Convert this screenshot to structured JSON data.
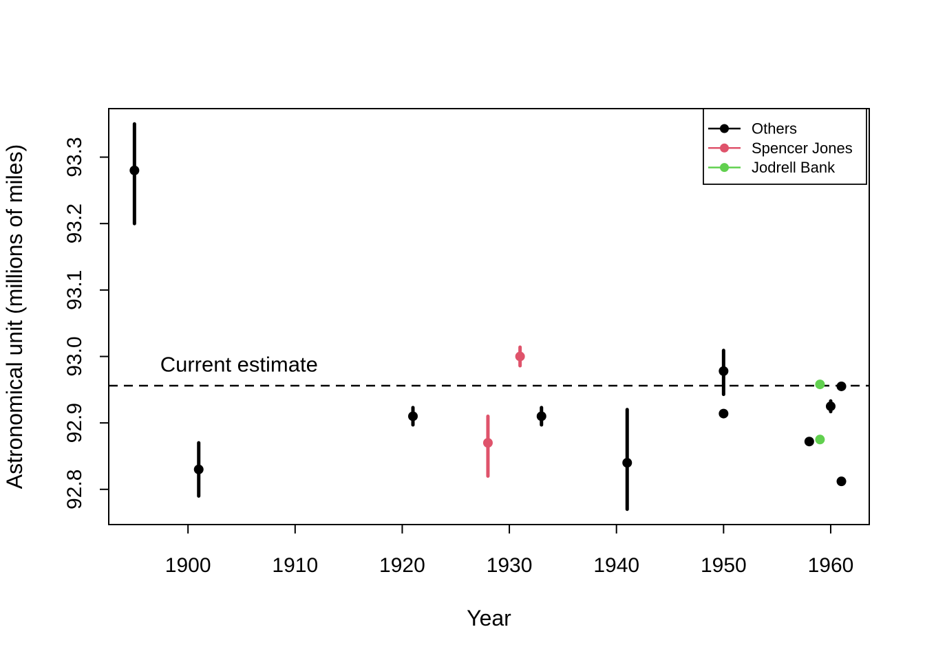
{
  "figure": {
    "background": "#ffffff",
    "aria_label": "Scatter plot of astronomical unit measurements by year"
  },
  "chart_data": {
    "type": "scatter",
    "title": "",
    "xlabel": "Year",
    "ylabel": "Astronomical unit (millions of miles)",
    "xlim": [
      1892.6,
      1963.6
    ],
    "ylim": [
      92.747,
      93.373
    ],
    "x_ticks": [
      1900,
      1910,
      1920,
      1930,
      1940,
      1950,
      1960
    ],
    "x_tick_labels": [
      "1900",
      "1910",
      "1920",
      "1930",
      "1940",
      "1950",
      "1960"
    ],
    "y_ticks": [
      92.8,
      92.9,
      93.0,
      93.1,
      93.2,
      93.3
    ],
    "y_tick_labels": [
      "92.8",
      "92.9",
      "93.0",
      "93.1",
      "93.2",
      "93.3"
    ],
    "grid": false,
    "frame": "full-box",
    "point_style": "filled-circle-with-error-bars",
    "reference_line": {
      "value": 92.956,
      "style": "dashed",
      "color": "#000000",
      "label": "Current estimate",
      "label_anchor_year": 1897.4,
      "label_baseline_au": 92.977
    },
    "legend": {
      "position": "top-right",
      "items": [
        {
          "label": "Others",
          "color": "#000000"
        },
        {
          "label": "Spencer Jones",
          "color": "#DF536B"
        },
        {
          "label": "Jodrell Bank",
          "color": "#61D04F"
        }
      ]
    },
    "series": [
      {
        "name": "Others",
        "color": "#000000",
        "points": [
          {
            "year": 1895,
            "au": 93.28,
            "lo": 93.2,
            "hi": 93.35
          },
          {
            "year": 1901,
            "au": 92.83,
            "lo": 92.79,
            "hi": 92.87
          },
          {
            "year": 1921,
            "au": 92.91,
            "lo": 92.897,
            "hi": 92.923
          },
          {
            "year": 1933,
            "au": 92.91,
            "lo": 92.897,
            "hi": 92.923
          },
          {
            "year": 1941,
            "au": 92.84,
            "lo": 92.77,
            "hi": 92.92
          },
          {
            "year": 1950,
            "au": 92.978,
            "lo": 92.943,
            "hi": 93.009
          },
          {
            "year": 1950,
            "au": 92.914
          },
          {
            "year": 1958,
            "au": 92.872
          },
          {
            "year": 1960,
            "au": 92.925,
            "lo": 92.917,
            "hi": 92.933
          },
          {
            "year": 1961,
            "au": 92.955
          },
          {
            "year": 1961,
            "au": 92.812
          }
        ]
      },
      {
        "name": "Spencer Jones",
        "color": "#DF536B",
        "points": [
          {
            "year": 1928,
            "au": 92.87,
            "lo": 92.82,
            "hi": 92.91
          },
          {
            "year": 1931,
            "au": 93.0,
            "lo": 92.986,
            "hi": 93.014
          }
        ]
      },
      {
        "name": "Jodrell Bank",
        "color": "#61D04F",
        "points": [
          {
            "year": 1959,
            "au": 92.958
          },
          {
            "year": 1959,
            "au": 92.875
          }
        ]
      }
    ]
  }
}
